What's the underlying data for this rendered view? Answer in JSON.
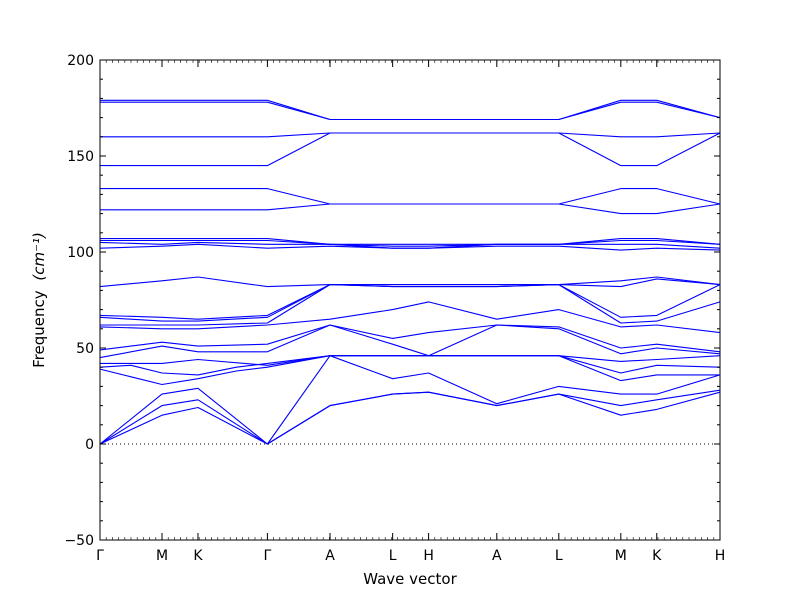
{
  "chart_data": {
    "type": "line",
    "title": "",
    "xlabel": "Wave vector",
    "ylabel": "Frequency",
    "ylabel_unit": "(cm⁻¹)",
    "ylim": [
      -50,
      200
    ],
    "yticks": [
      -50,
      0,
      50,
      100,
      150,
      200
    ],
    "ytick_labels": [
      "−50",
      "0",
      "50",
      "100",
      "150",
      "200"
    ],
    "grid": false,
    "line_color": "#0000ff",
    "zero_line": 0,
    "high_symmetry_points": [
      {
        "label": "Γ",
        "x": 0.0
      },
      {
        "label": "M",
        "x": 0.1
      },
      {
        "label": "K",
        "x": 0.158
      },
      {
        "label": "Γ",
        "x": 0.27
      },
      {
        "label": "A",
        "x": 0.371
      },
      {
        "label": "L",
        "x": 0.472
      },
      {
        "label": "H",
        "x": 0.53
      },
      {
        "label": "A",
        "x": 0.64
      },
      {
        "label": "L",
        "x": 0.74
      },
      {
        "label": "M",
        "x": 0.84
      },
      {
        "label": "K",
        "x": 0.898
      },
      {
        "label": "H",
        "x": 1.0
      }
    ],
    "series": [
      {
        "x": [
          0,
          0.1,
          0.158,
          0.27,
          0.371,
          0.472,
          0.53,
          0.64,
          0.74,
          0.84,
          0.898,
          1.0
        ],
        "y": [
          0,
          15,
          19,
          0,
          20,
          26,
          27,
          20,
          26,
          15,
          18,
          27
        ]
      },
      {
        "x": [
          0,
          0.1,
          0.158,
          0.27,
          0.371,
          0.472,
          0.53,
          0.64,
          0.74,
          0.84,
          0.898,
          1.0
        ],
        "y": [
          0,
          20,
          23,
          0,
          20,
          26,
          27,
          20,
          26,
          20,
          23,
          28
        ]
      },
      {
        "x": [
          0,
          0.1,
          0.158,
          0.27,
          0.371,
          0.472,
          0.53,
          0.64,
          0.74,
          0.84,
          0.898,
          1.0
        ],
        "y": [
          0,
          26,
          29,
          0,
          46,
          34,
          37,
          21,
          30,
          26,
          26,
          36
        ]
      },
      {
        "x": [
          0,
          0.05,
          0.1,
          0.158,
          0.22,
          0.27,
          0.371,
          0.472,
          0.53,
          0.64,
          0.74,
          0.84,
          0.898,
          1.0
        ],
        "y": [
          39,
          35,
          31,
          34,
          38,
          40,
          46,
          46,
          46,
          46,
          46,
          33,
          36,
          36
        ]
      },
      {
        "x": [
          0,
          0.05,
          0.1,
          0.158,
          0.22,
          0.27,
          0.371,
          0.472,
          0.53,
          0.64,
          0.74,
          0.84,
          0.898,
          1.0
        ],
        "y": [
          40,
          41,
          37,
          36,
          40,
          42,
          46,
          46,
          46,
          46,
          46,
          37,
          41,
          40
        ]
      },
      {
        "x": [
          0,
          0.1,
          0.158,
          0.27,
          0.371,
          0.472,
          0.53,
          0.64,
          0.74,
          0.84,
          0.898,
          1.0
        ],
        "y": [
          42,
          42,
          44,
          41,
          46,
          46,
          46,
          46,
          46,
          43,
          44,
          46
        ]
      },
      {
        "x": [
          0,
          0.1,
          0.158,
          0.27,
          0.371,
          0.472,
          0.53,
          0.64,
          0.74,
          0.84,
          0.898,
          1.0
        ],
        "y": [
          45,
          51,
          48,
          48,
          62,
          52,
          46,
          62,
          60,
          47,
          50,
          47
        ]
      },
      {
        "x": [
          0,
          0.1,
          0.158,
          0.27,
          0.371,
          0.472,
          0.53,
          0.64,
          0.74,
          0.84,
          0.898,
          1.0
        ],
        "y": [
          49,
          53,
          51,
          52,
          62,
          55,
          58,
          62,
          61,
          50,
          52,
          48
        ]
      },
      {
        "x": [
          0,
          0.1,
          0.158,
          0.27,
          0.371,
          0.472,
          0.53,
          0.64,
          0.74,
          0.84,
          0.898,
          1.0
        ],
        "y": [
          61,
          60,
          60,
          62,
          65,
          70,
          74,
          65,
          70,
          61,
          62,
          58
        ]
      },
      {
        "x": [
          0,
          0.1,
          0.158,
          0.27,
          0.371,
          0.472,
          0.53,
          0.64,
          0.74,
          0.84,
          0.898,
          1.0
        ],
        "y": [
          62,
          62,
          62,
          63,
          83,
          82,
          82,
          82,
          83,
          63,
          64,
          74
        ]
      },
      {
        "x": [
          0,
          0.1,
          0.158,
          0.27,
          0.371,
          0.472,
          0.53,
          0.64,
          0.74,
          0.84,
          0.898,
          1.0
        ],
        "y": [
          66,
          64,
          64,
          66,
          83,
          82,
          82,
          82,
          83,
          66,
          67,
          83
        ]
      },
      {
        "x": [
          0,
          0.1,
          0.158,
          0.27,
          0.371,
          0.472,
          0.53,
          0.64,
          0.74,
          0.84,
          0.898,
          1.0
        ],
        "y": [
          67,
          66,
          65,
          67,
          83,
          83,
          83,
          83,
          83,
          82,
          86,
          83
        ]
      },
      {
        "x": [
          0,
          0.1,
          0.158,
          0.27,
          0.371,
          0.472,
          0.53,
          0.64,
          0.74,
          0.84,
          0.898,
          1.0
        ],
        "y": [
          82,
          85,
          87,
          82,
          83,
          83,
          83,
          83,
          83,
          85,
          87,
          83
        ]
      },
      {
        "x": [
          0,
          0.1,
          0.158,
          0.27,
          0.371,
          0.472,
          0.53,
          0.64,
          0.74,
          0.84,
          0.898,
          1.0
        ],
        "y": [
          102,
          103,
          104,
          102,
          103,
          102,
          102,
          103,
          103,
          101,
          102,
          101
        ]
      },
      {
        "x": [
          0,
          0.1,
          0.158,
          0.27,
          0.371,
          0.472,
          0.53,
          0.64,
          0.74,
          0.84,
          0.898,
          1.0
        ],
        "y": [
          105,
          104,
          105,
          104,
          104,
          102,
          102,
          104,
          104,
          104,
          104,
          102
        ]
      },
      {
        "x": [
          0,
          0.1,
          0.158,
          0.27,
          0.371,
          0.472,
          0.53,
          0.64,
          0.74,
          0.84,
          0.898,
          1.0
        ],
        "y": [
          106,
          106,
          106,
          106,
          104,
          103,
          103,
          104,
          104,
          106,
          106,
          104
        ]
      },
      {
        "x": [
          0,
          0.1,
          0.158,
          0.27,
          0.371,
          0.472,
          0.53,
          0.64,
          0.74,
          0.84,
          0.898,
          1.0
        ],
        "y": [
          107,
          107,
          107,
          107,
          104,
          104,
          104,
          104,
          104,
          107,
          107,
          104
        ]
      },
      {
        "x": [
          0,
          0.1,
          0.158,
          0.27,
          0.371,
          0.472,
          0.53,
          0.64,
          0.74,
          0.84,
          0.898,
          1.0
        ],
        "y": [
          122,
          122,
          122,
          122,
          125,
          125,
          125,
          125,
          125,
          120,
          120,
          125
        ]
      },
      {
        "x": [
          0,
          0.1,
          0.158,
          0.27,
          0.371,
          0.472,
          0.53,
          0.64,
          0.74,
          0.84,
          0.898,
          1.0
        ],
        "y": [
          133,
          133,
          133,
          133,
          125,
          125,
          125,
          125,
          125,
          133,
          133,
          125
        ]
      },
      {
        "x": [
          0,
          0.1,
          0.158,
          0.27,
          0.371,
          0.472,
          0.53,
          0.64,
          0.74,
          0.84,
          0.898,
          1.0
        ],
        "y": [
          145,
          145,
          145,
          145,
          162,
          162,
          162,
          162,
          162,
          145,
          145,
          162
        ]
      },
      {
        "x": [
          0,
          0.1,
          0.158,
          0.27,
          0.371,
          0.472,
          0.53,
          0.64,
          0.74,
          0.84,
          0.898,
          1.0
        ],
        "y": [
          160,
          160,
          160,
          160,
          162,
          162,
          162,
          162,
          162,
          160,
          160,
          162
        ]
      },
      {
        "x": [
          0,
          0.1,
          0.158,
          0.27,
          0.371,
          0.472,
          0.53,
          0.64,
          0.74,
          0.84,
          0.898,
          1.0
        ],
        "y": [
          178,
          178,
          178,
          178,
          169,
          169,
          169,
          169,
          169,
          178,
          178,
          170
        ]
      },
      {
        "x": [
          0,
          0.1,
          0.158,
          0.27,
          0.371,
          0.472,
          0.53,
          0.64,
          0.74,
          0.84,
          0.898,
          1.0
        ],
        "y": [
          179,
          179,
          179,
          179,
          169,
          169,
          169,
          169,
          169,
          179,
          179,
          170
        ]
      }
    ]
  }
}
